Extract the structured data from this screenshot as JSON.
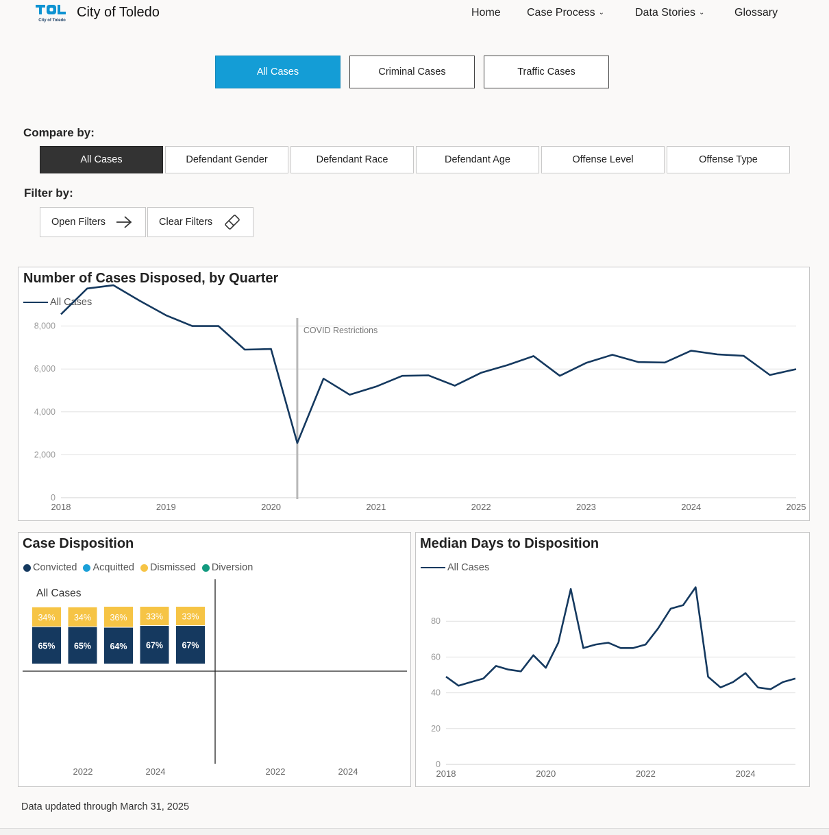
{
  "header": {
    "logo_text": "TOL",
    "logo_sub": "City of Toledo",
    "brand": "City of Toledo",
    "nav": [
      {
        "label": "Home",
        "dropdown": false
      },
      {
        "label": "Case Process",
        "dropdown": true
      },
      {
        "label": "Data Stories",
        "dropdown": true
      },
      {
        "label": "Glossary",
        "dropdown": false
      }
    ],
    "logo_color": "#0e93d2"
  },
  "case_tabs": [
    {
      "label": "All Cases",
      "active": true
    },
    {
      "label": "Criminal Cases",
      "active": false
    },
    {
      "label": "Traffic Cases",
      "active": false
    }
  ],
  "compare": {
    "label": "Compare by:",
    "options": [
      {
        "label": "All Cases",
        "active": true
      },
      {
        "label": "Defendant Gender",
        "active": false
      },
      {
        "label": "Defendant Race",
        "active": false
      },
      {
        "label": "Defendant Age",
        "active": false
      },
      {
        "label": "Offense Level",
        "active": false
      },
      {
        "label": "Offense Type",
        "active": false
      }
    ]
  },
  "filter": {
    "label": "Filter by:",
    "open_label": "Open Filters",
    "open_icon": "arrow-right-icon",
    "clear_label": "Clear Filters",
    "clear_icon": "eraser-icon"
  },
  "footer": "Data updated through March 31, 2025",
  "colors": {
    "accent": "#149dd6",
    "line": "#15395f",
    "convicted": "#15395f",
    "acquitted": "#1ba0d8",
    "dismissed": "#f6c445",
    "diversion": "#129a7f"
  },
  "chart_data": [
    {
      "type": "line",
      "title": "Number of Cases Disposed, by Quarter",
      "series_name": "All Cases",
      "x_ticks": [
        "2018",
        "2019",
        "2020",
        "2021",
        "2022",
        "2023",
        "2024",
        "2025"
      ],
      "y_ticks": [
        "0",
        "2,000",
        "4,000",
        "6,000",
        "8,000"
      ],
      "ylim": [
        0,
        10000
      ],
      "annotation": {
        "label": "COVID Restrictions",
        "x": 2020.25
      },
      "points": [
        [
          2018.0,
          8550
        ],
        [
          2018.25,
          9750
        ],
        [
          2018.5,
          9900
        ],
        [
          2018.75,
          9180
        ],
        [
          2019.0,
          8500
        ],
        [
          2019.25,
          8000
        ],
        [
          2019.5,
          8000
        ],
        [
          2019.75,
          6900
        ],
        [
          2020.0,
          6930
        ],
        [
          2020.25,
          2550
        ],
        [
          2020.5,
          5550
        ],
        [
          2020.75,
          4800
        ],
        [
          2021.0,
          5180
        ],
        [
          2021.25,
          5680
        ],
        [
          2021.5,
          5700
        ],
        [
          2021.75,
          5220
        ],
        [
          2022.0,
          5820
        ],
        [
          2022.25,
          6180
        ],
        [
          2022.5,
          6600
        ],
        [
          2022.75,
          5680
        ],
        [
          2023.0,
          6280
        ],
        [
          2023.25,
          6660
        ],
        [
          2023.5,
          6320
        ],
        [
          2023.75,
          6300
        ],
        [
          2024.0,
          6850
        ],
        [
          2024.25,
          6680
        ],
        [
          2024.5,
          6610
        ],
        [
          2024.75,
          5720
        ],
        [
          2025.0,
          5990
        ]
      ],
      "grid": true
    },
    {
      "type": "bar",
      "title": "Case Disposition",
      "legend": [
        "Convicted",
        "Acquitted",
        "Dismissed",
        "Diversion"
      ],
      "panel_label": "All Cases",
      "stacked": true,
      "bars": [
        {
          "convicted": 65,
          "dismissed": 34,
          "convicted_label": "65%",
          "dismissed_label": "34%"
        },
        {
          "convicted": 65,
          "dismissed": 34,
          "convicted_label": "65%",
          "dismissed_label": "34%"
        },
        {
          "convicted": 64,
          "dismissed": 36,
          "convicted_label": "64%",
          "dismissed_label": "36%"
        },
        {
          "convicted": 67,
          "dismissed": 33,
          "convicted_label": "67%",
          "dismissed_label": "33%"
        },
        {
          "convicted": 67,
          "dismissed": 33,
          "convicted_label": "67%",
          "dismissed_label": "33%"
        }
      ],
      "x_ticks_left": [
        "2022",
        "2024"
      ],
      "x_ticks_right": [
        "2022",
        "2024"
      ]
    },
    {
      "type": "line",
      "title": "Median Days to Disposition",
      "series_name": "All Cases",
      "x_ticks": [
        "2018",
        "2020",
        "2022",
        "2024"
      ],
      "y_ticks": [
        "0",
        "20",
        "40",
        "60",
        "80"
      ],
      "ylim": [
        0,
        100
      ],
      "points": [
        [
          2018.0,
          49
        ],
        [
          2018.25,
          44
        ],
        [
          2018.5,
          46
        ],
        [
          2018.75,
          48
        ],
        [
          2019.0,
          55
        ],
        [
          2019.25,
          53
        ],
        [
          2019.5,
          52
        ],
        [
          2019.75,
          61
        ],
        [
          2020.0,
          54
        ],
        [
          2020.25,
          68
        ],
        [
          2020.5,
          98
        ],
        [
          2020.75,
          65
        ],
        [
          2021.0,
          67
        ],
        [
          2021.25,
          68
        ],
        [
          2021.5,
          65
        ],
        [
          2021.75,
          65
        ],
        [
          2022.0,
          67
        ],
        [
          2022.25,
          76
        ],
        [
          2022.5,
          87
        ],
        [
          2022.75,
          89
        ],
        [
          2023.0,
          99
        ],
        [
          2023.25,
          49
        ],
        [
          2023.5,
          43
        ],
        [
          2023.75,
          46
        ],
        [
          2024.0,
          51
        ],
        [
          2024.25,
          43
        ],
        [
          2024.5,
          42
        ],
        [
          2024.75,
          46
        ],
        [
          2025.0,
          48
        ]
      ],
      "grid": true
    }
  ]
}
